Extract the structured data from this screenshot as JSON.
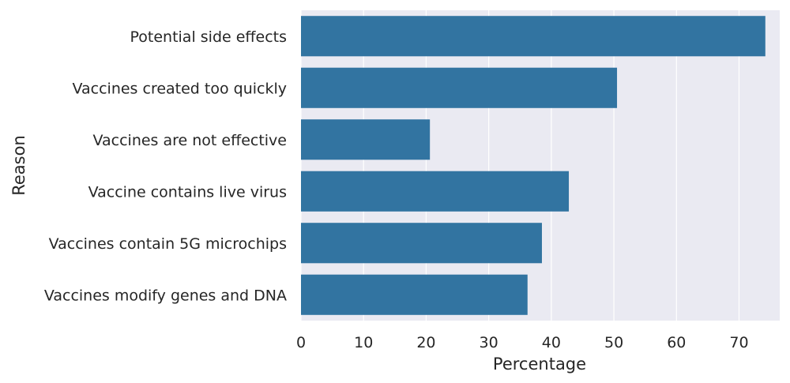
{
  "chart_data": {
    "type": "bar",
    "orientation": "horizontal",
    "categories": [
      "Potential side effects",
      "Vaccines created too quickly",
      "Vaccines are not effective",
      "Vaccine contains live virus",
      "Vaccines contain 5G microchips",
      "Vaccines modify genes and DNA"
    ],
    "values": [
      74.2,
      50.5,
      20.6,
      42.8,
      38.5,
      36.2
    ],
    "xlabel": "Percentage",
    "ylabel": "Reason",
    "xlim": [
      0,
      76.5
    ],
    "xticks": [
      "0",
      "10",
      "20",
      "30",
      "40",
      "50",
      "60",
      "70"
    ],
    "grid": true,
    "colors": {
      "bar": "#3274a1",
      "background": "#eaeaf2",
      "grid": "#ffffff"
    }
  }
}
